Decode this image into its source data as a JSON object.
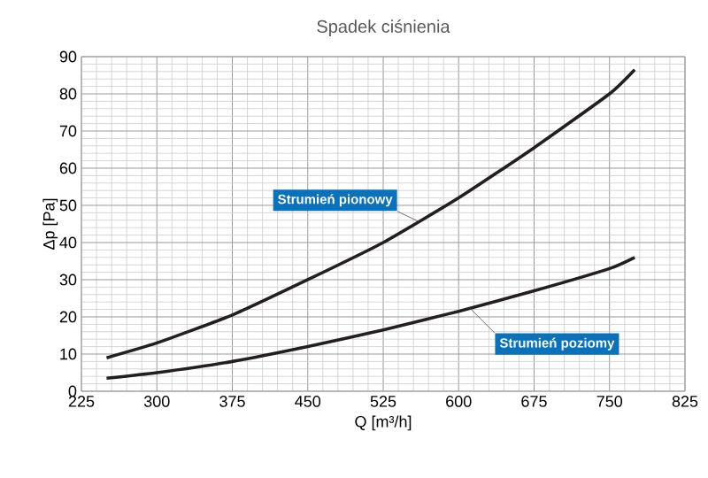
{
  "chart_data": {
    "type": "line",
    "title": "Spadek ciśnienia",
    "xlabel": "Q [m³/h]",
    "ylabel": "Δp [Pa]",
    "x": [
      250,
      300,
      375,
      450,
      525,
      600,
      675,
      750,
      775
    ],
    "series": [
      {
        "name": "Strumień pionowy",
        "color": "#231f20",
        "values": [
          9,
          13,
          20.5,
          30,
          40,
          52,
          65.5,
          80,
          86.5
        ]
      },
      {
        "name": "Strumień poziomy",
        "color": "#231f20",
        "values": [
          3.5,
          5,
          8,
          12,
          16.5,
          21.5,
          27,
          33,
          36
        ]
      }
    ],
    "xlim": [
      225,
      825
    ],
    "xticks": [
      225,
      300,
      375,
      450,
      525,
      600,
      675,
      750,
      825
    ],
    "ylim": [
      0,
      90
    ],
    "yticks": [
      0,
      10,
      20,
      30,
      40,
      50,
      60,
      70,
      80,
      90
    ],
    "grid": true,
    "marker": "none",
    "line_style": "solid"
  }
}
